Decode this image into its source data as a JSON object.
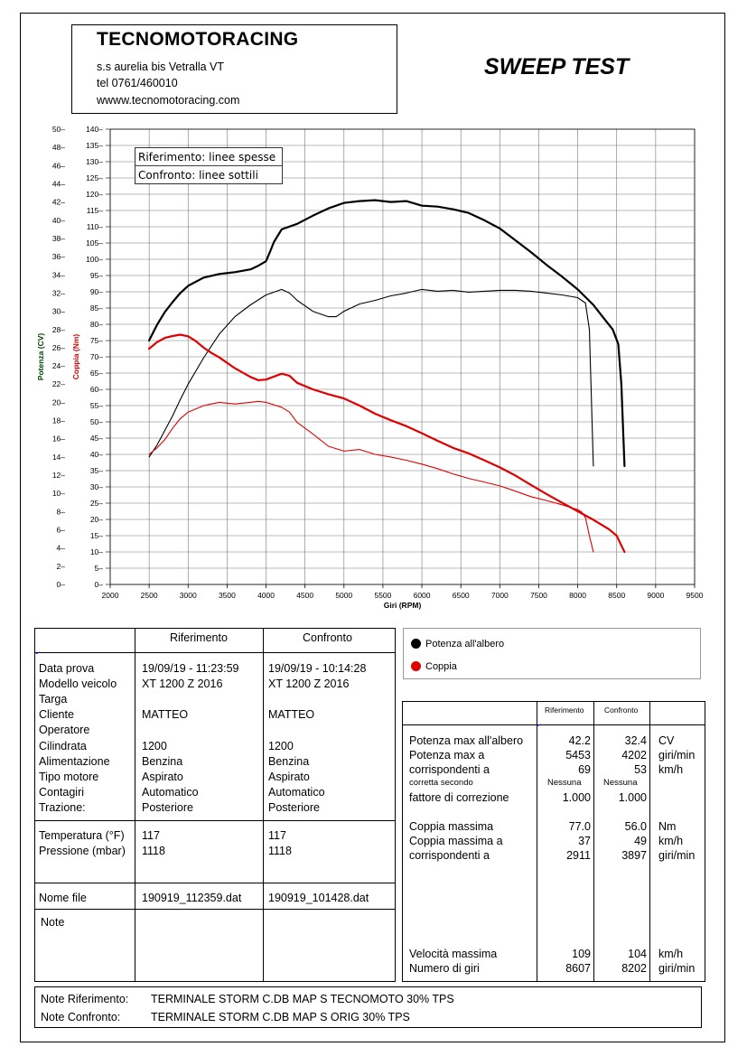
{
  "header": {
    "company": "TECNOMOTORACING",
    "address": "s.s aurelia bis  Vetralla  VT",
    "phone": "tel 0761/460010",
    "website": "wwww.tecnomotoracing.com",
    "title": "SWEEP TEST"
  },
  "chart_data": {
    "type": "line",
    "xlabel": "Giri (RPM)",
    "ylabel_power": "Potenza (CV)",
    "ylabel_torque": "Coppia (Nm)",
    "x_ticks": [
      "2000",
      "2500",
      "3000",
      "3500",
      "4000",
      "4500",
      "5000",
      "5500",
      "6000",
      "6500",
      "7000",
      "7500",
      "8000",
      "8500",
      "9000",
      "9500"
    ],
    "power_ticks": [
      "0",
      "2",
      "4",
      "6",
      "8",
      "10",
      "12",
      "14",
      "16",
      "18",
      "20",
      "22",
      "24",
      "26",
      "28",
      "30",
      "32",
      "34",
      "36",
      "38",
      "40",
      "42",
      "44",
      "46",
      "48",
      "50"
    ],
    "torque_ticks": [
      "0",
      "5",
      "10",
      "15",
      "20",
      "25",
      "30",
      "35",
      "40",
      "45",
      "50",
      "55",
      "60",
      "65",
      "70",
      "75",
      "80",
      "85",
      "90",
      "95",
      "100",
      "105",
      "110",
      "115",
      "120",
      "125",
      "130",
      "135",
      "140"
    ],
    "xlim": [
      2000,
      9500
    ],
    "ylim_torque_scale": [
      0,
      140
    ],
    "ylim_power": [
      0,
      50
    ],
    "annotation_ref": "Riferimento: linee spesse",
    "annotation_cmp": "Confronto: linee sottili",
    "series": [
      {
        "name": "Potenza Riferimento (CV)",
        "color": "#000000",
        "width": 2.2,
        "axis": "power",
        "x": [
          2500,
          2600,
          2700,
          2800,
          2900,
          3000,
          3200,
          3400,
          3600,
          3800,
          3900,
          4000,
          4050,
          4100,
          4200,
          4400,
          4600,
          4800,
          5000,
          5200,
          5400,
          5600,
          5800,
          6000,
          6200,
          6400,
          6600,
          6800,
          7000,
          7200,
          7400,
          7600,
          7800,
          8000,
          8200,
          8300,
          8450,
          8520,
          8560,
          8600
        ],
        "y": [
          26.8,
          28.5,
          29.9,
          31.0,
          32.0,
          32.8,
          33.7,
          34.1,
          34.3,
          34.6,
          35.0,
          35.5,
          36.5,
          37.6,
          39.0,
          39.6,
          40.5,
          41.3,
          41.9,
          42.1,
          42.2,
          42.0,
          42.1,
          41.6,
          41.5,
          41.2,
          40.8,
          40.0,
          39.1,
          37.8,
          36.5,
          35.1,
          33.8,
          32.4,
          30.7,
          29.6,
          28.0,
          26.4,
          22.0,
          13.0
        ]
      },
      {
        "name": "Potenza Confronto (CV)",
        "color": "#000000",
        "width": 1.1,
        "axis": "power",
        "x": [
          2500,
          2600,
          2700,
          2800,
          2900,
          3000,
          3200,
          3400,
          3600,
          3800,
          4000,
          4200,
          4300,
          4400,
          4600,
          4800,
          4900,
          5000,
          5200,
          5400,
          5600,
          5800,
          6000,
          6200,
          6400,
          6600,
          6800,
          7000,
          7200,
          7400,
          7600,
          7800,
          8000,
          8100,
          8150,
          8200
        ],
        "y": [
          14.0,
          15.3,
          16.9,
          18.5,
          20.3,
          22.0,
          24.9,
          27.5,
          29.4,
          30.7,
          31.8,
          32.4,
          32.0,
          31.2,
          30.0,
          29.4,
          29.4,
          30.0,
          30.8,
          31.2,
          31.7,
          32.0,
          32.4,
          32.2,
          32.3,
          32.1,
          32.2,
          32.3,
          32.3,
          32.2,
          32.0,
          31.8,
          31.5,
          30.9,
          28.0,
          13.0
        ]
      },
      {
        "name": "Coppia Riferimento (Nm)",
        "color": "#e00000",
        "width": 2.2,
        "axis": "torque",
        "x": [
          2500,
          2600,
          2700,
          2800,
          2900,
          3000,
          3100,
          3200,
          3300,
          3400,
          3600,
          3800,
          3900,
          4000,
          4200,
          4300,
          4400,
          4600,
          4800,
          5000,
          5200,
          5400,
          5600,
          5800,
          6000,
          6200,
          6400,
          6600,
          6800,
          7000,
          7200,
          7400,
          7600,
          7800,
          8000,
          8200,
          8400,
          8500,
          8560,
          8600
        ],
        "y": [
          72.5,
          74.5,
          75.8,
          76.4,
          76.8,
          76.3,
          74.8,
          72.8,
          71.2,
          69.8,
          66.5,
          63.8,
          62.8,
          63.0,
          64.8,
          64.2,
          62.0,
          60.0,
          58.5,
          57.2,
          55.0,
          52.5,
          50.5,
          48.7,
          46.5,
          44.2,
          42.0,
          40.3,
          38.2,
          36.0,
          33.5,
          30.6,
          27.8,
          25.1,
          22.5,
          19.9,
          17.0,
          15.0,
          12.0,
          10.0
        ]
      },
      {
        "name": "Coppia Confronto (Nm)",
        "color": "#e00000",
        "width": 1.1,
        "axis": "torque",
        "x": [
          2500,
          2600,
          2700,
          2800,
          2900,
          3000,
          3100,
          3200,
          3300,
          3400,
          3600,
          3800,
          3900,
          4000,
          4200,
          4300,
          4400,
          4600,
          4800,
          5000,
          5200,
          5400,
          5600,
          5800,
          6000,
          6200,
          6400,
          6600,
          6800,
          7000,
          7200,
          7400,
          7600,
          7800,
          8000,
          8050,
          8100,
          8150,
          8200
        ],
        "y": [
          40.0,
          42.0,
          44.5,
          48.0,
          51.0,
          53.0,
          54.0,
          55.0,
          55.5,
          56.0,
          55.5,
          56.0,
          56.3,
          56.0,
          54.5,
          53.0,
          49.8,
          46.3,
          42.5,
          41.0,
          41.5,
          40.0,
          39.2,
          38.2,
          37.0,
          35.6,
          34.0,
          32.6,
          31.5,
          30.3,
          28.7,
          27.0,
          25.8,
          24.5,
          23.0,
          22.3,
          20.5,
          15.0,
          10.0
        ]
      }
    ]
  },
  "legend": {
    "power_label": "Potenza all'albero",
    "torque_label": "Coppia",
    "power_color": "#000000",
    "torque_color": "#e00000"
  },
  "info_table": {
    "header_ref": "Riferimento",
    "header_cmp": "Confronto",
    "labels_main": [
      "Data prova",
      "Modello veicolo",
      "Targa",
      "Cliente",
      "Operatore",
      "Cilindrata",
      "Alimentazione",
      "Tipo motore",
      "Contagiri",
      "Trazione:"
    ],
    "ref_main": [
      "19/09/19 - 11:23:59",
      "XT 1200 Z 2016",
      "",
      "MATTEO",
      "",
      "1200",
      "Benzina",
      "Aspirato",
      "Automatico",
      "Posteriore"
    ],
    "cmp_main": [
      "19/09/19 - 10:14:28",
      "XT 1200 Z 2016",
      "",
      "MATTEO",
      "",
      "1200",
      "Benzina",
      "Aspirato",
      "Automatico",
      "Posteriore"
    ],
    "labels_env": [
      "Temperatura (°F)",
      "Pressione (mbar)"
    ],
    "ref_env": [
      "117",
      "1118"
    ],
    "cmp_env": [
      "117",
      "1118"
    ],
    "label_file": "Nome file",
    "ref_file": "190919_112359.dat",
    "cmp_file": "190919_101428.dat",
    "label_note": "Note"
  },
  "results_table": {
    "header_ref": "Riferimento",
    "header_cmp": "Confronto",
    "max_power_label": "Potenza max all'albero",
    "max_power_ref": "42.2",
    "max_power_cmp": "32.4",
    "max_power_unit": "CV",
    "power_rpm_label": "Potenza max a",
    "power_rpm_ref": "5453",
    "power_rpm_cmp": "4202",
    "power_rpm_unit": "giri/min",
    "power_speed_label": "corrispondenti a",
    "power_speed_ref": "69",
    "power_speed_cmp": "53",
    "power_speed_unit": "km/h",
    "corrected_label": "corretta secondo",
    "corrected_ref": "Nessuna",
    "corrected_cmp": "Nessuna",
    "factor_label": "fattore di correzione",
    "factor_ref": "1.000",
    "factor_cmp": "1.000",
    "max_torque_label": "Coppia massima",
    "max_torque_ref": "77.0",
    "max_torque_cmp": "56.0",
    "max_torque_unit": "Nm",
    "torque_speed_label": "Coppia massima a",
    "torque_speed_ref": "37",
    "torque_speed_cmp": "49",
    "torque_speed_unit": "km/h",
    "torque_rpm_label": "corrispondenti a",
    "torque_rpm_ref": "2911",
    "torque_rpm_cmp": "3897",
    "torque_rpm_unit": "giri/min",
    "max_speed_label": "Velocità massima",
    "max_speed_ref": "109",
    "max_speed_cmp": "104",
    "max_speed_unit": "km/h",
    "max_rpm_label": "Numero di giri",
    "max_rpm_ref": "8607",
    "max_rpm_cmp": "8202",
    "max_rpm_unit": "giri/min"
  },
  "notes": {
    "ref_label": "Note Riferimento:",
    "ref_value": "TERMINALE STORM C.DB MAP S TECNOMOTO 30% TPS",
    "cmp_label": "Note Confronto:",
    "cmp_value": "TERMINALE STORM C.DB MAP S ORIG 30% TPS"
  }
}
